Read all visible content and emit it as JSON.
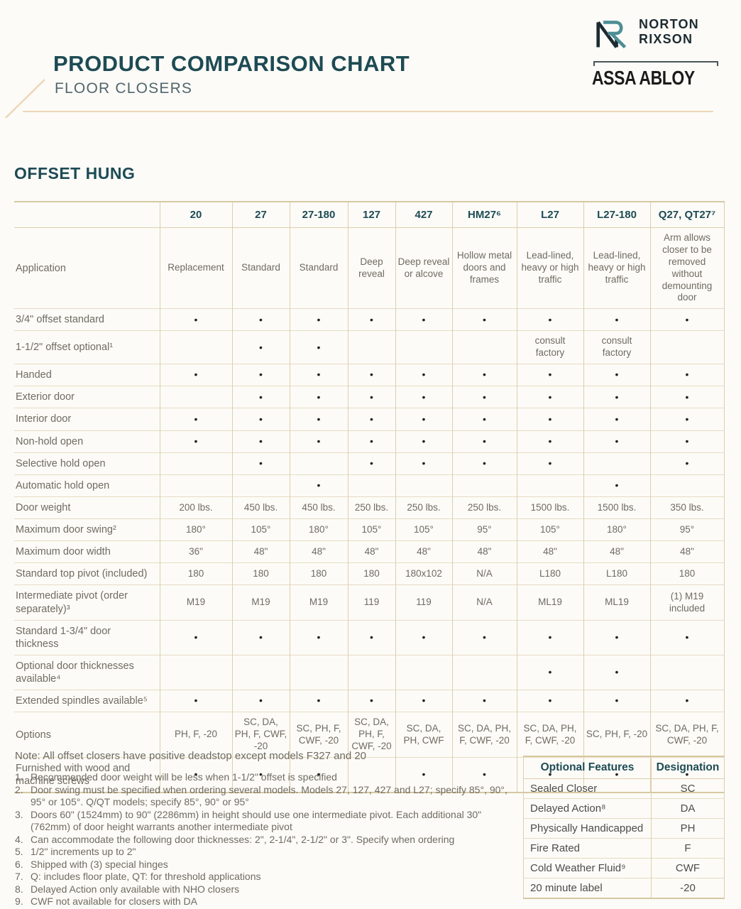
{
  "header": {
    "title": "PRODUCT COMPARISON CHART",
    "subtitle": "FLOOR CLOSERS",
    "brand": {
      "name_line1": "NORTON",
      "name_line2": "RIXSON",
      "group": "ASSA ABLOY"
    }
  },
  "section": {
    "title": "OFFSET HUNG"
  },
  "comparison_table": {
    "columns": [
      "",
      "20",
      "27",
      "27-180",
      "127",
      "427",
      "HM27⁶",
      "L27",
      "L27-180",
      "Q27, QT27⁷"
    ],
    "rows": [
      {
        "label": "Application",
        "cells": [
          "Replacement",
          "Standard",
          "Standard",
          "Deep reveal",
          "Deep reveal or alcove",
          "Hollow metal doors and frames",
          "Lead-lined, heavy or high traffic",
          "Lead-lined, heavy or high traffic",
          "Arm allows closer to be removed without demounting door"
        ]
      },
      {
        "label": "3/4\" offset standard",
        "cells": [
          "•",
          "•",
          "•",
          "•",
          "•",
          "•",
          "•",
          "•",
          "•"
        ]
      },
      {
        "label": "1-1/2\" offset optional¹",
        "cells": [
          "",
          "•",
          "•",
          "",
          "",
          "",
          "consult factory",
          "consult factory",
          ""
        ]
      },
      {
        "label": "Handed",
        "cells": [
          "•",
          "•",
          "•",
          "•",
          "•",
          "•",
          "•",
          "•",
          "•"
        ]
      },
      {
        "label": "Exterior door",
        "cells": [
          "",
          "•",
          "•",
          "•",
          "•",
          "•",
          "•",
          "•",
          "•"
        ]
      },
      {
        "label": "Interior door",
        "cells": [
          "•",
          "•",
          "•",
          "•",
          "•",
          "•",
          "•",
          "•",
          "•"
        ]
      },
      {
        "label": "Non-hold open",
        "cells": [
          "•",
          "•",
          "•",
          "•",
          "•",
          "•",
          "•",
          "•",
          "•"
        ]
      },
      {
        "label": "Selective hold open",
        "cells": [
          "",
          "•",
          "",
          "•",
          "•",
          "•",
          "•",
          "",
          "•"
        ]
      },
      {
        "label": "Automatic hold open",
        "cells": [
          "",
          "",
          "•",
          "",
          "",
          "",
          "",
          "•",
          ""
        ]
      },
      {
        "label": "Door weight",
        "cells": [
          "200 lbs.",
          "450 lbs.",
          "450 lbs.",
          "250 lbs.",
          "250 lbs.",
          "250 lbs.",
          "1500 lbs.",
          "1500 lbs.",
          "350 lbs."
        ]
      },
      {
        "label": "Maximum door swing²",
        "cells": [
          "180°",
          "105°",
          "180°",
          "105°",
          "105°",
          "95°",
          "105°",
          "180°",
          "95°"
        ]
      },
      {
        "label": "Maximum door width",
        "cells": [
          "36\"",
          "48\"",
          "48\"",
          "48\"",
          "48\"",
          "48\"",
          "48\"",
          "48\"",
          "48\""
        ]
      },
      {
        "label": "Standard top pivot (included)",
        "cells": [
          "180",
          "180",
          "180",
          "180",
          "180x102",
          "N/A",
          "L180",
          "L180",
          "180"
        ]
      },
      {
        "label": "Intermediate pivot (order separately)³",
        "cells": [
          "M19",
          "M19",
          "M19",
          "119",
          "119",
          "N/A",
          "ML19",
          "ML19",
          "(1) M19 included"
        ]
      },
      {
        "label": "Standard 1-3/4\" door thickness",
        "cells": [
          "•",
          "•",
          "•",
          "•",
          "•",
          "•",
          "•",
          "•",
          "•"
        ]
      },
      {
        "label": "Optional door thicknesses available⁴",
        "cells": [
          "",
          "",
          "",
          "",
          "",
          "",
          "•",
          "•",
          ""
        ]
      },
      {
        "label": "Extended spindles available⁵",
        "cells": [
          "•",
          "•",
          "•",
          "•",
          "•",
          "•",
          "•",
          "•",
          "•"
        ]
      },
      {
        "label": "Options",
        "cells": [
          "PH, F, -20",
          "SC, DA, PH, F, CWF, -20",
          "SC, PH, F, CWF, -20",
          "SC, DA, PH, F, CWF, -20",
          "SC, DA, PH, CWF",
          "SC, DA, PH, F, CWF, -20",
          "SC, DA, PH, F, CWF, -20",
          "SC, PH, F, -20",
          "SC, DA, PH, F, CWF, -20"
        ]
      },
      {
        "label": "Furnished with wood and machine screws",
        "cells": [
          "•",
          "•",
          "•",
          "",
          "•",
          "•",
          "•",
          "•",
          "•"
        ]
      }
    ]
  },
  "note": "Note: All offset closers have positive deadstop except models F327 and 20",
  "footnotes": [
    {
      "num": "1.",
      "text": "Recommended door weight will be less when 1-1/2\" offset is specified"
    },
    {
      "num": "2.",
      "text": "Door swing must be specified when ordering several models. Models 27, 127, 427 and L27; specify 85°, 90°, 95° or 105°. Q/QT models; specify 85°, 90° or 95°"
    },
    {
      "num": "3.",
      "text": "Doors 60\" (1524mm) to 90\" (2286mm) in height should use one intermediate pivot. Each additional 30\" (762mm) of door height warrants another intermediate pivot"
    },
    {
      "num": "4.",
      "text": "Can accommodate the following door thicknesses: 2\", 2-1/4\", 2-1/2\" or 3\". Specify when ordering"
    },
    {
      "num": "5.",
      "text": "1/2\" increments up to 2\""
    },
    {
      "num": "6.",
      "text": "Shipped with (3) special hinges"
    },
    {
      "num": "7.",
      "text": "Q: includes floor plate, QT: for threshold applications"
    },
    {
      "num": "8.",
      "text": "Delayed Action only available with NHO closers"
    },
    {
      "num": "9.",
      "text": "CWF not available for closers with DA"
    }
  ],
  "features_table": {
    "headers": [
      "Optional Features",
      "Designation"
    ],
    "rows": [
      {
        "feature": "Sealed Closer",
        "designation": "SC"
      },
      {
        "feature": "Delayed Action⁸",
        "designation": "DA"
      },
      {
        "feature": "Physically Handicapped",
        "designation": "PH"
      },
      {
        "feature": "Fire Rated",
        "designation": "F"
      },
      {
        "feature": "Cold Weather Fluid⁹",
        "designation": "CWF"
      },
      {
        "feature": "20 minute label",
        "designation": "-20"
      }
    ]
  },
  "colors": {
    "heading_teal": "#1d4b54",
    "subtitle_gray": "#51666d",
    "body_gray": "#6f6b62",
    "border_tan": "#ddcfae",
    "accent_tan": "#eed7b8",
    "logo_dark": "#1c2b31",
    "logo_teal": "#4e8e96"
  }
}
